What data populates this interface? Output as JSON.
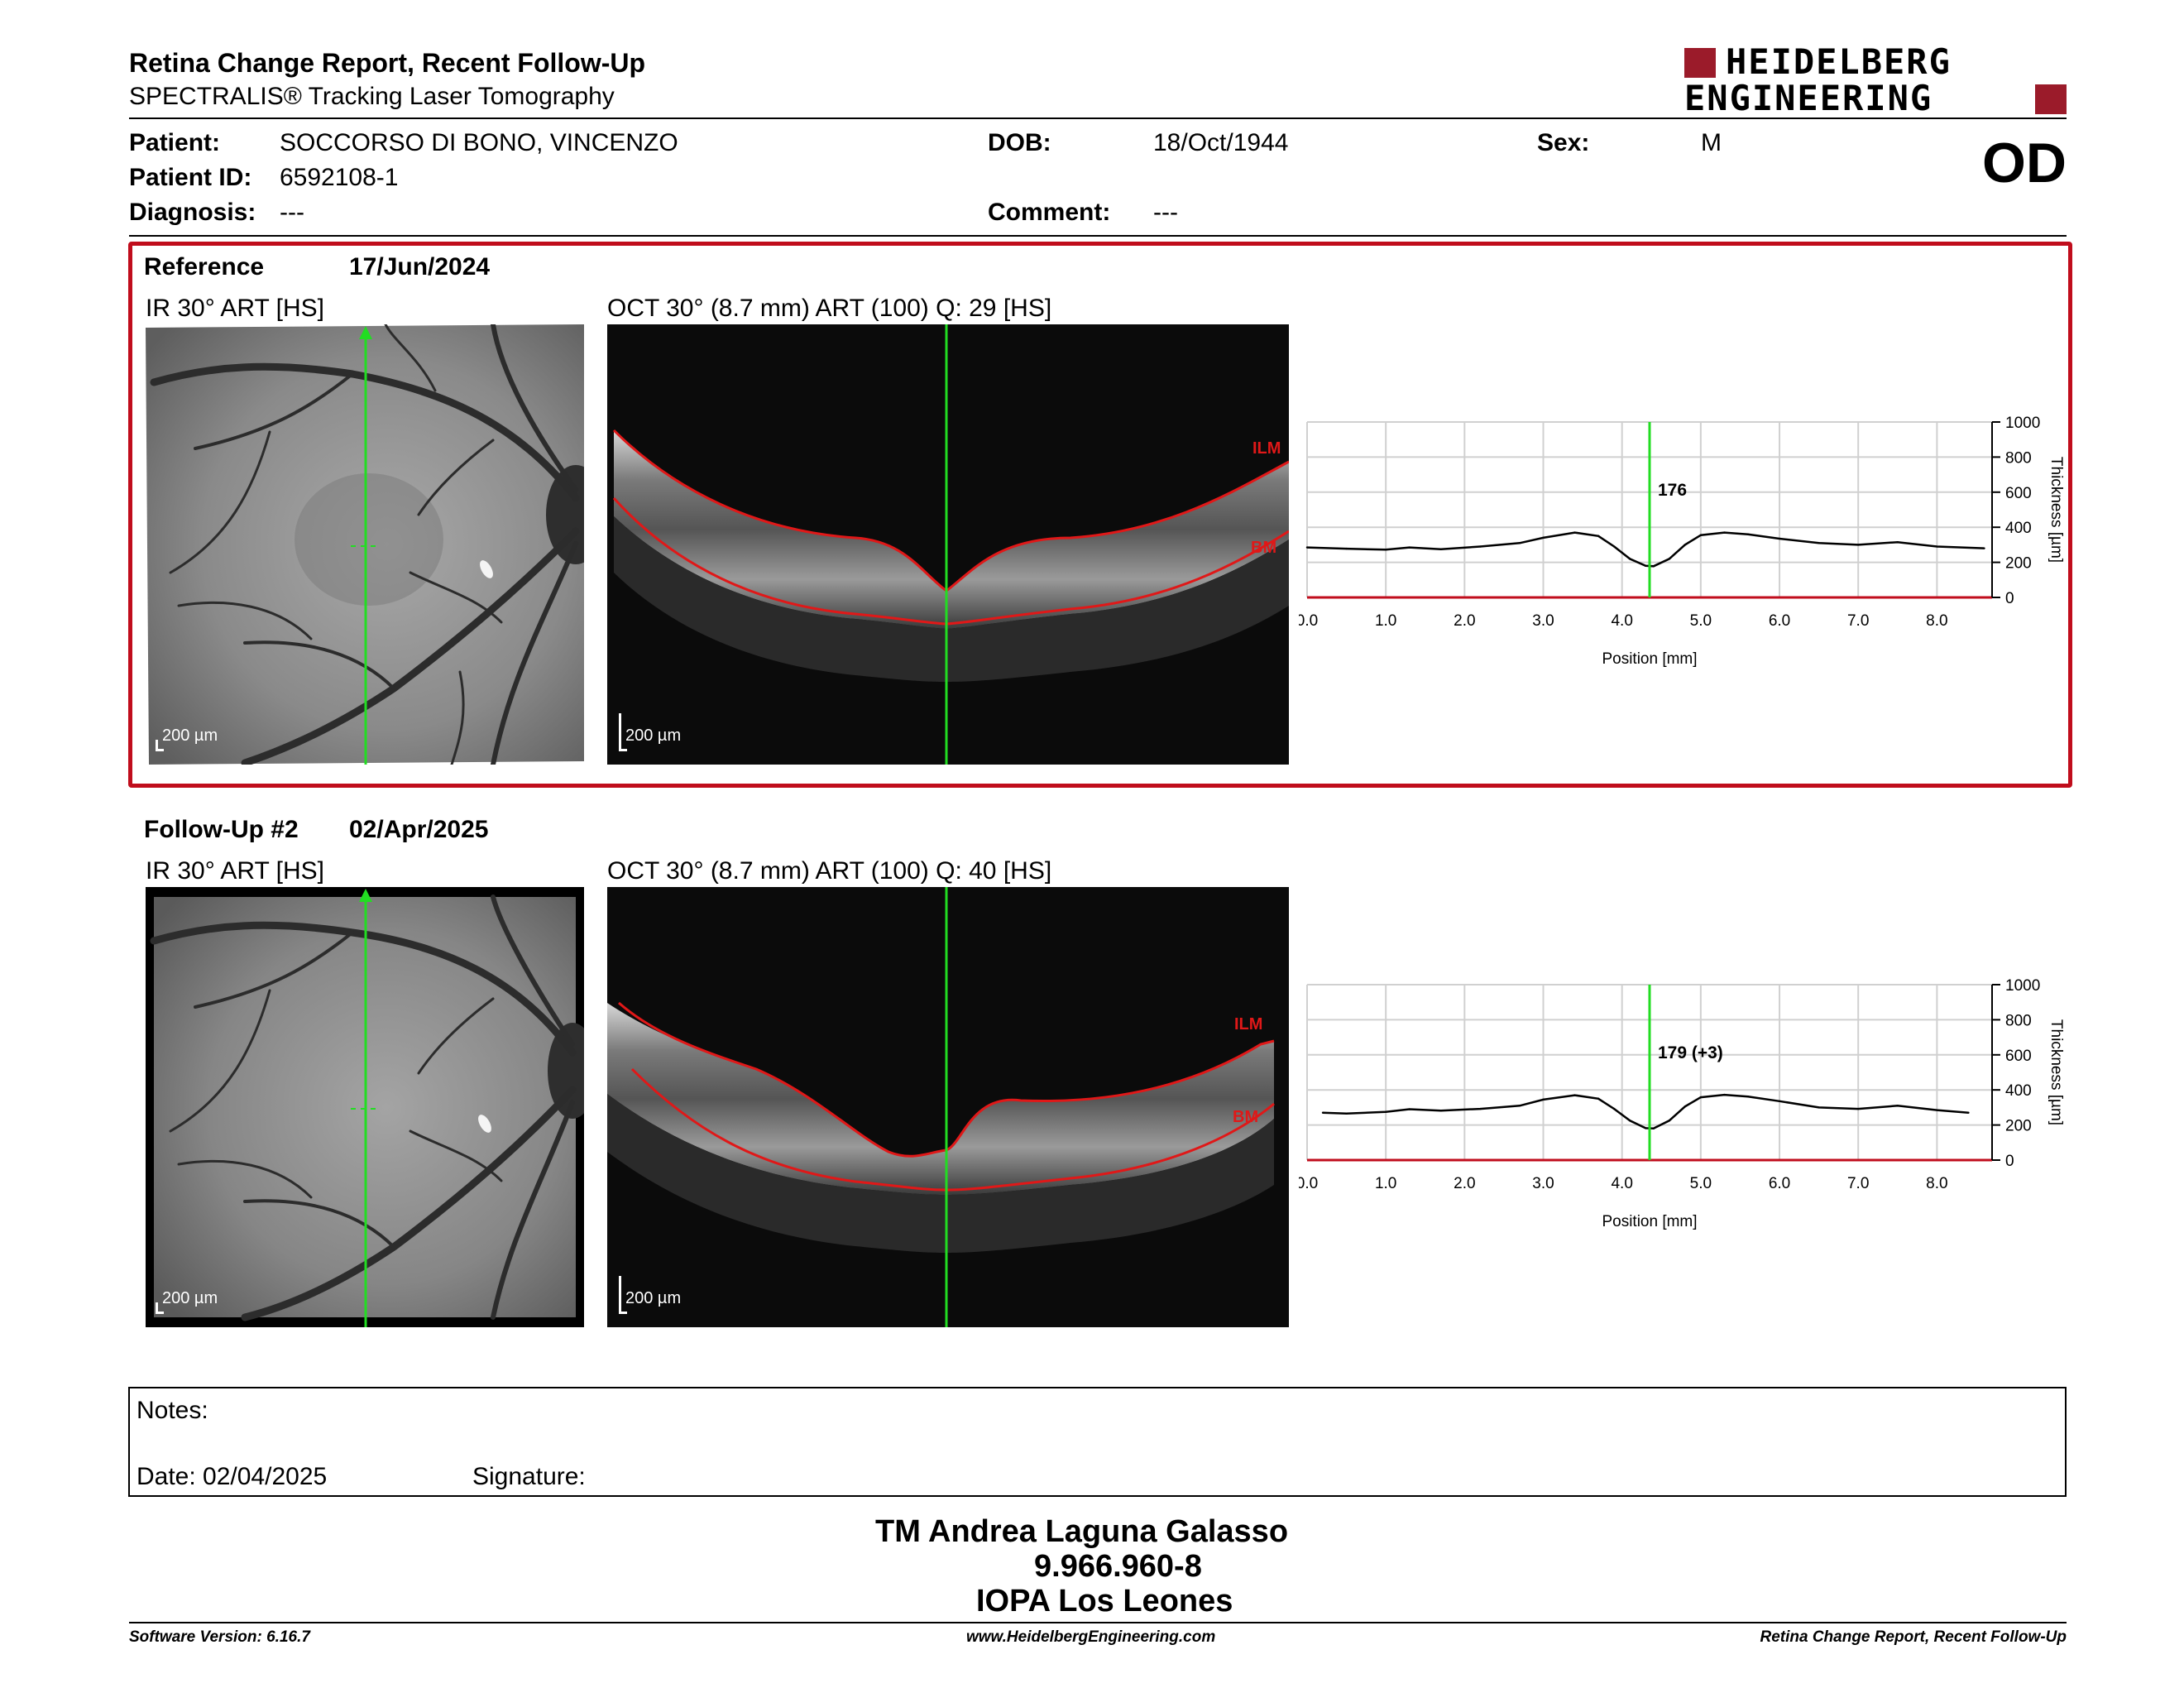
{
  "header": {
    "title": "Retina Change Report, Recent Follow-Up",
    "subtitle": "SPECTRALIS® Tracking Laser Tomography",
    "logo_line1": "HEIDELBERG",
    "logo_line2": "ENGINEERING",
    "eye": "OD"
  },
  "patient": {
    "name_label": "Patient:",
    "name": "SOCCORSO DI BONO, VINCENZO",
    "id_label": "Patient ID:",
    "id": "6592108-1",
    "diagnosis_label": "Diagnosis:",
    "diagnosis": "---",
    "dob_label": "DOB:",
    "dob": "18/Oct/1944",
    "comment_label": "Comment:",
    "comment": "---",
    "sex_label": "Sex:",
    "sex": "M"
  },
  "reference": {
    "label": "Reference",
    "date": "17/Jun/2024",
    "ir_label": "IR 30° ART [HS]",
    "oct_label": "OCT 30° (8.7 mm) ART (100) Q: 29 [HS]",
    "scale": "200 µm",
    "ilm": "ILM",
    "bm": "BM"
  },
  "followup": {
    "label": "Follow-Up #2",
    "date": "02/Apr/2025",
    "ir_label": "IR 30° ART [HS]",
    "oct_label": "OCT 30° (8.7 mm) ART (100) Q: 40 [HS]",
    "scale": "200 µm",
    "ilm": "ILM",
    "bm": "BM"
  },
  "notes": {
    "notes_label": "Notes:",
    "date_label": "Date: 02/04/2025",
    "signature_label": "Signature:"
  },
  "signature": {
    "name": "TM Andrea Laguna Galasso",
    "number": "9.966.960-8",
    "institution": "IOPA Los Leones"
  },
  "footer": {
    "software": "Software Version: 6.16.7",
    "website": "www.HeidelbergEngineering.com",
    "report": "Retina Change Report, Recent Follow-Up"
  },
  "colors": {
    "accent": "#c00d1c",
    "logo": "#9b1b2a",
    "cursor": "#22dd22",
    "segmentation": "#d01010"
  },
  "chart_data": [
    {
      "type": "line",
      "xlabel": "Position [mm]",
      "ylabel": "Thickness [µm]",
      "xlim": [
        0,
        8.7
      ],
      "ylim": [
        0,
        1000
      ],
      "xticks": [
        "0.0",
        "1.0",
        "2.0",
        "3.0",
        "4.0",
        "5.0",
        "6.0",
        "7.0",
        "8.0"
      ],
      "yticks": [
        "0",
        "200",
        "400",
        "600",
        "800",
        "1000"
      ],
      "cursor_x": 4.35,
      "cursor_label": "176",
      "x": [
        0.0,
        0.5,
        1.0,
        1.3,
        1.7,
        2.2,
        2.7,
        3.0,
        3.4,
        3.7,
        3.9,
        4.1,
        4.3,
        4.4,
        4.6,
        4.8,
        5.0,
        5.3,
        5.6,
        6.0,
        6.5,
        7.0,
        7.5,
        8.0,
        8.6
      ],
      "values": [
        285,
        278,
        272,
        285,
        275,
        290,
        310,
        340,
        370,
        350,
        290,
        220,
        180,
        178,
        220,
        300,
        355,
        370,
        360,
        335,
        310,
        300,
        315,
        290,
        280
      ]
    },
    {
      "type": "line",
      "xlabel": "Position [mm]",
      "ylabel": "Thickness [µm]",
      "xlim": [
        0,
        8.7
      ],
      "ylim": [
        0,
        1000
      ],
      "xticks": [
        "0.0",
        "1.0",
        "2.0",
        "3.0",
        "4.0",
        "5.0",
        "6.0",
        "7.0",
        "8.0"
      ],
      "yticks": [
        "0",
        "200",
        "400",
        "600",
        "800",
        "1000"
      ],
      "cursor_x": 4.35,
      "cursor_label": "179 (+3)",
      "x": [
        0.2,
        0.5,
        1.0,
        1.3,
        1.7,
        2.2,
        2.7,
        3.0,
        3.4,
        3.7,
        3.9,
        4.1,
        4.3,
        4.4,
        4.6,
        4.8,
        5.0,
        5.3,
        5.6,
        6.0,
        6.5,
        7.0,
        7.5,
        8.0,
        8.4
      ],
      "values": [
        270,
        265,
        275,
        290,
        282,
        292,
        310,
        345,
        370,
        350,
        292,
        225,
        182,
        180,
        225,
        305,
        358,
        372,
        362,
        336,
        300,
        292,
        310,
        285,
        270
      ]
    }
  ]
}
